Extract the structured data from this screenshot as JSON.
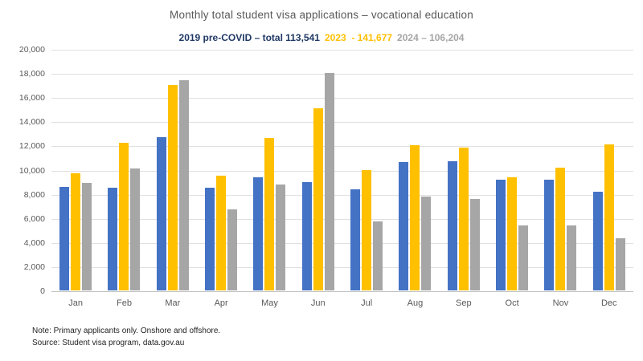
{
  "chart": {
    "title": "Monthly total student visa applications – vocational education",
    "notes": {
      "line1": "Note: Primary applicants only. Onshore and offshore.",
      "line2": "Source: Student visa program, data.gov.au"
    }
  },
  "chart_data": {
    "type": "bar",
    "title": "Monthly total student visa applications – vocational education",
    "categories": [
      "Jan",
      "Feb",
      "Mar",
      "Apr",
      "May",
      "Jun",
      "Jul",
      "Aug",
      "Sep",
      "Oct",
      "Nov",
      "Dec"
    ],
    "series": [
      {
        "name": "2019 pre-COVID",
        "legend_label": "2019 pre-COVID – total 113,541",
        "total_shown": "113,541",
        "bar_color": "#4472C4",
        "legend_color": "#1F3864",
        "values": [
          8600,
          8500,
          12700,
          8500,
          9400,
          9000,
          8400,
          10600,
          10700,
          9200,
          9200,
          8200
        ]
      },
      {
        "name": "2023",
        "legend_label": "2023  - 141,677",
        "total_shown": "141,677",
        "bar_color": "#FFC000",
        "legend_color": "#FFC000",
        "values": [
          9700,
          12200,
          17000,
          9500,
          12600,
          15100,
          10000,
          12000,
          11800,
          9400,
          10200,
          12100
        ]
      },
      {
        "name": "2024",
        "legend_label": "2024 – 106,204",
        "total_shown": "106,204",
        "bar_color": "#A6A6A6",
        "legend_color": "#A6A6A6",
        "values": [
          8900,
          10100,
          17400,
          6700,
          8800,
          18000,
          5700,
          7800,
          7600,
          5400,
          5400,
          4300
        ]
      }
    ],
    "xlabel": "",
    "ylabel": "",
    "ylim": [
      0,
      20000
    ],
    "ytick_step": 2000,
    "ytick_labels": [
      "0",
      "2,000",
      "4,000",
      "6,000",
      "8,000",
      "10,000",
      "12,000",
      "14,000",
      "16,000",
      "18,000",
      "20,000"
    ],
    "grid": true,
    "legend_position": "top-subtitle"
  }
}
